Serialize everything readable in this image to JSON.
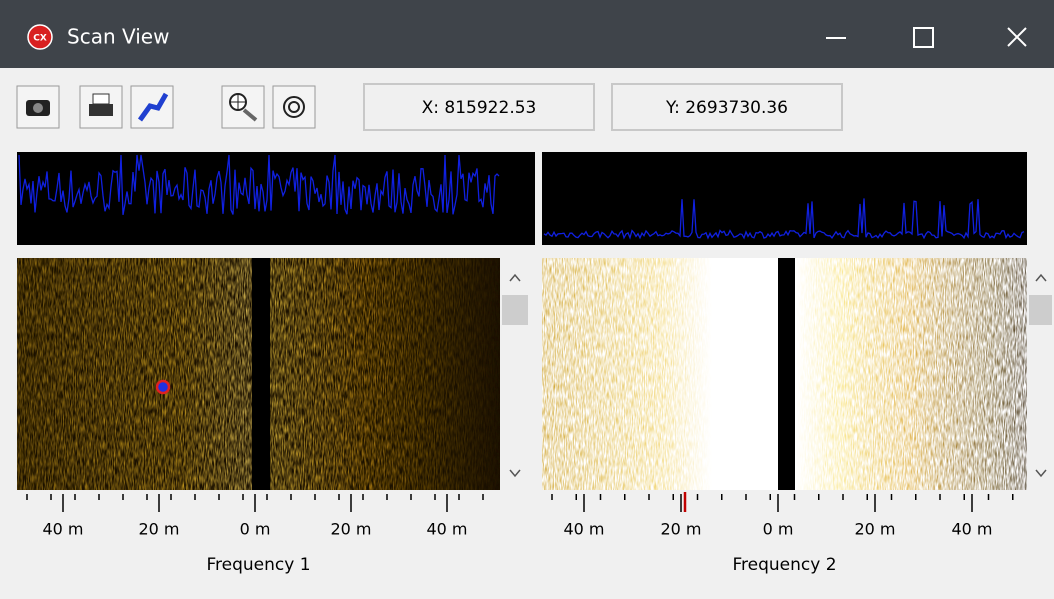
{
  "window": {
    "title": "Scan View"
  },
  "toolbar": {
    "x_readout": "X: 815922.53",
    "y_readout": "Y: 2693730.36"
  },
  "panels": [
    {
      "label": "Frequency 1",
      "scale_labels": [
        "40 m",
        "20 m",
        "0 m",
        "20 m",
        "40 m"
      ]
    },
    {
      "label": "Frequency 2",
      "scale_labels": [
        "40 m",
        "20 m",
        "0 m",
        "20 m",
        "40 m"
      ]
    }
  ]
}
